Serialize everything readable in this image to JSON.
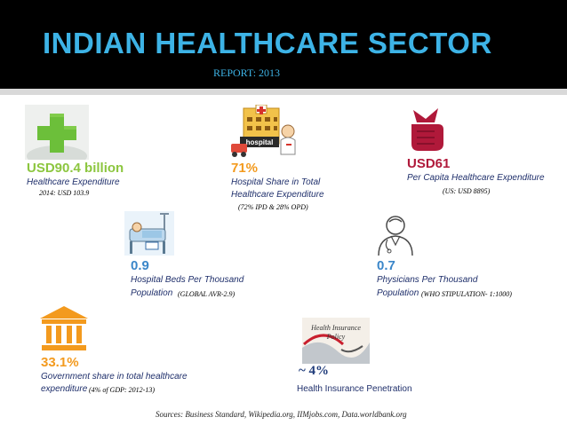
{
  "header": {
    "title": "INDIAN HEALTHCARE SECTOR",
    "subtitle": "REPORT: 2013"
  },
  "stats": {
    "expenditure": {
      "value": "USD90.4 billion",
      "label": "Healthcare Expenditure",
      "note": "2014: USD 103.9"
    },
    "hospital": {
      "icon_text": "hospital",
      "value": "71%",
      "label_line1": "Hospital Share in Total",
      "label_line2": "Healthcare Expenditure",
      "note": "(72% IPD & 28% OPD)"
    },
    "per_capita": {
      "value": "USD61",
      "label": "Per Capita Healthcare Expenditure",
      "note": "(US: USD 8895)"
    },
    "beds": {
      "value": "0.9",
      "label_line1": "Hospital Beds Per Thousand",
      "label_line2": "Population",
      "note": "(GLOBAL AVR-2.9)"
    },
    "physicians": {
      "value": "0.7",
      "label_line1": "Physicians Per Thousand",
      "label_line2": "Population",
      "note": "(WHO STIPULATION- 1:1000)"
    },
    "government": {
      "value": "33.1%",
      "label_line1": "Government share in total healthcare",
      "label_line2": "expenditure",
      "note": "(4% of GDP: 2012-13)"
    },
    "insurance": {
      "icon_text_line1": "Health Insurance",
      "icon_text_line2": "Policy",
      "value": "~ 4%",
      "label": "Health Insurance Penetration"
    }
  },
  "sources": "Sources: Business Standard, Wikipedia.org, IIMjobs.com, Data.worldbank.org",
  "colors": {
    "title": "#3db3e6",
    "green": "#8cc63f",
    "orange": "#f39a1e",
    "red": "#b0193a",
    "blue": "#3a86c9",
    "navy": "#1f2f6b"
  }
}
